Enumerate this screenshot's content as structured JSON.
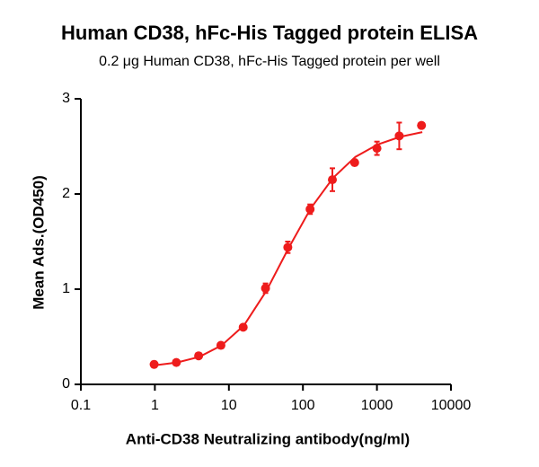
{
  "chart_data": {
    "type": "scatter",
    "title": "Human CD38, hFc-His Tagged protein ELISA",
    "subtitle": "0.2 μg Human CD38, hFc-His Tagged protein per well",
    "x_label": "Anti-CD38 Neutralizing antibody(ng/ml)",
    "y_label": "Mean Ads.(OD450)",
    "x": [
      0.977,
      1.95,
      3.9,
      7.8,
      15.6,
      31.25,
      62.5,
      125,
      250,
      500,
      1000,
      2000,
      4000
    ],
    "values": [
      0.21,
      0.23,
      0.3,
      0.41,
      0.6,
      1.01,
      1.44,
      1.84,
      2.15,
      2.33,
      2.48,
      2.61,
      2.72
    ],
    "errors": [
      0.03,
      0.02,
      0.02,
      0.02,
      0.02,
      0.05,
      0.06,
      0.05,
      0.12,
      0.03,
      0.07,
      0.14,
      0.02
    ],
    "fit_x": [
      1,
      2,
      4,
      8,
      16,
      32,
      64,
      128,
      256,
      512,
      1024,
      2048,
      4096
    ],
    "fit_values": [
      0.2,
      0.23,
      0.29,
      0.41,
      0.62,
      0.98,
      1.43,
      1.85,
      2.17,
      2.39,
      2.52,
      2.6,
      2.65
    ],
    "color": "#ee1c1c",
    "x_log": true,
    "xlim": [
      0.1,
      10000
    ],
    "xticks": [
      0.1,
      1,
      10,
      100,
      1000,
      10000
    ],
    "ylim": [
      0,
      3
    ],
    "yticks": [
      0,
      1,
      2,
      3
    ]
  }
}
